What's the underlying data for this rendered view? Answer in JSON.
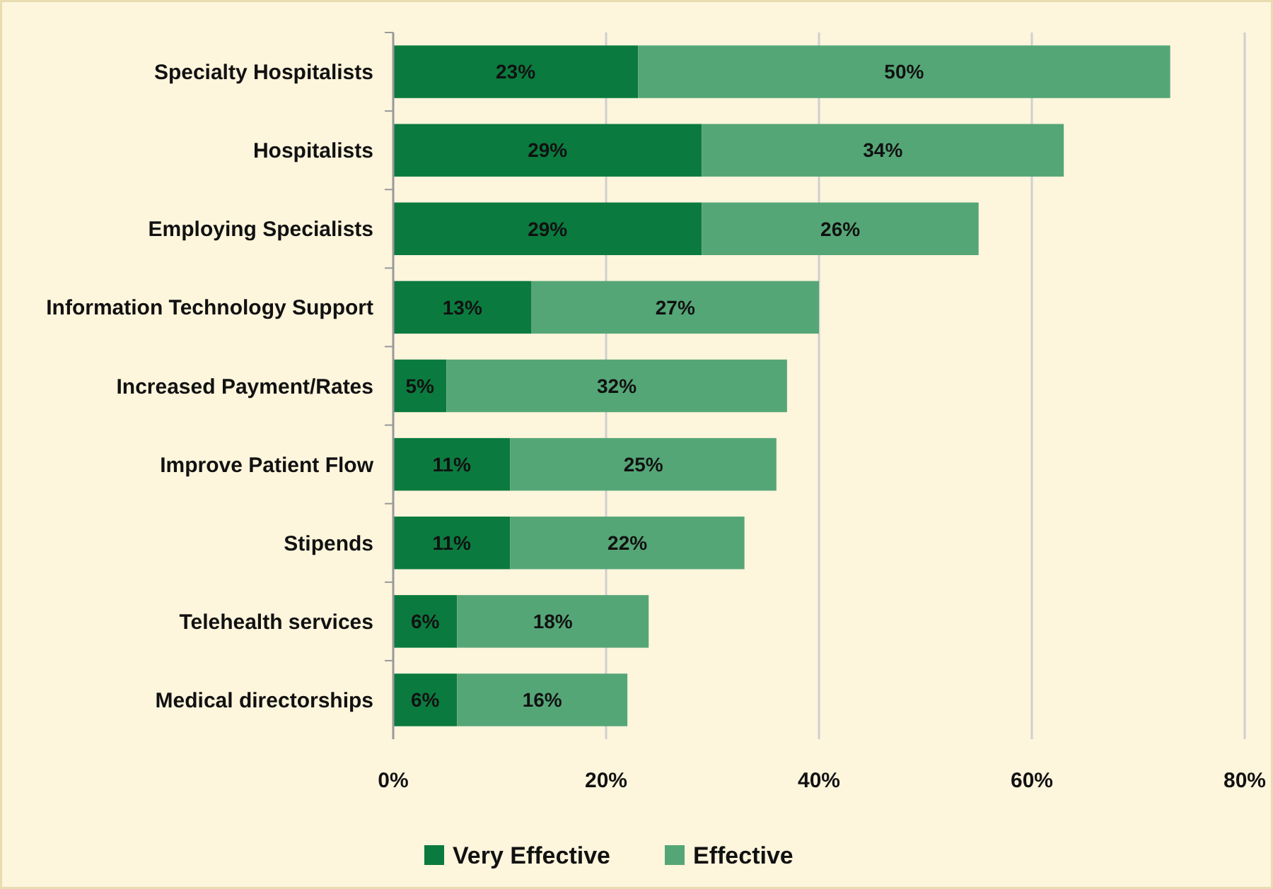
{
  "chart_data": {
    "type": "bar",
    "orientation": "horizontal",
    "stacked": true,
    "grid": "x",
    "legend": "bottom",
    "categories": [
      "Specialty Hospitalists",
      "Hospitalists",
      "Employing Specialists",
      "Information Technology Support",
      "Increased Payment/Rates",
      "Improve Patient Flow",
      "Stipends",
      "Telehealth services",
      "Medical directorships"
    ],
    "series": [
      {
        "name": "Very Effective",
        "color": "#0b7a3f",
        "values": [
          23,
          29,
          29,
          13,
          5,
          11,
          11,
          6,
          6
        ],
        "value_labels": [
          "23%",
          "29%",
          "29%",
          "13%",
          "5%",
          "11%",
          "11%",
          "6%",
          "6%"
        ]
      },
      {
        "name": "Effective",
        "color": "#55a677",
        "values": [
          50,
          34,
          26,
          27,
          32,
          25,
          22,
          18,
          16
        ],
        "value_labels": [
          "50%",
          "34%",
          "26%",
          "27%",
          "32%",
          "25%",
          "22%",
          "18%",
          "16%"
        ]
      }
    ],
    "xlim": [
      0,
      80
    ],
    "xticks": [
      {
        "value": 0,
        "label": "0%"
      },
      {
        "value": 20,
        "label": "20%"
      },
      {
        "value": 40,
        "label": "40%"
      },
      {
        "value": 60,
        "label": "60%"
      },
      {
        "value": 80,
        "label": "80%"
      }
    ]
  }
}
